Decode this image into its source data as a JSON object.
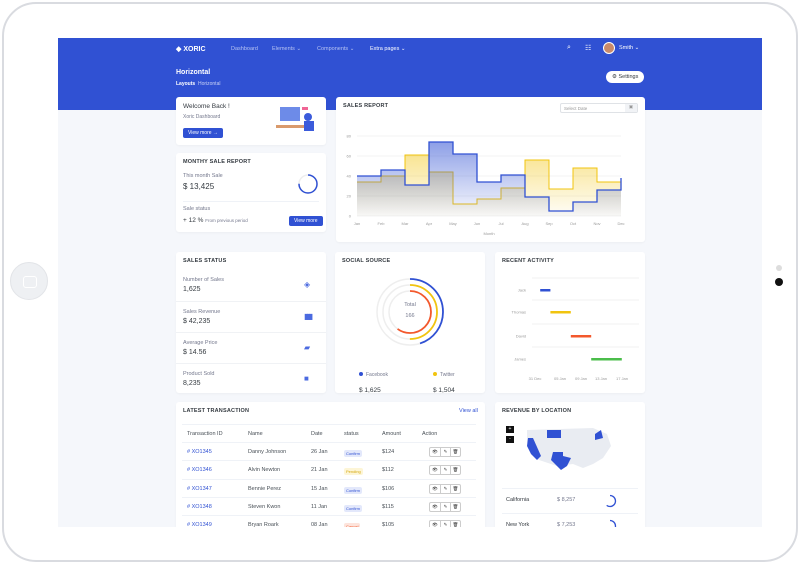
{
  "brand": "XORIC",
  "nav": [
    {
      "label": "Dashboard"
    },
    {
      "label": "Elements",
      "caret": true
    },
    {
      "label": "Components",
      "caret": true
    },
    {
      "label": "Extra pages",
      "caret": true,
      "active": true
    }
  ],
  "user": {
    "name": "Smith"
  },
  "page": {
    "title": "Horizontal",
    "breadcrumb": [
      "Layouts",
      "Horizontal"
    ],
    "settings_label": "Settings"
  },
  "welcome": {
    "title": "Welcome Back !",
    "subtitle": "Xoric Dashboard",
    "button": "View more →"
  },
  "monthly": {
    "title": "MONTHY SALE REPORT",
    "this_month_label": "This month Sale",
    "this_month_value": "$ 13,425",
    "progress": 0.75,
    "status_label": "Sale status",
    "status_value": "+ 12 %",
    "status_note": "From previous period",
    "button": "View more"
  },
  "sales_report": {
    "title": "SALES REPORT",
    "date_placeholder": "Select Date",
    "chart_data": {
      "type": "area",
      "xlabel": "Month",
      "categories": [
        "Jan",
        "Feb",
        "Mar",
        "Apr",
        "May",
        "Jun",
        "Jul",
        "Aug",
        "Sep",
        "Oct",
        "Nov",
        "Dec"
      ],
      "ylim": [
        0,
        80
      ],
      "yticks": [
        0,
        20,
        40,
        60,
        80
      ],
      "step": true,
      "series": [
        {
          "color": "#3051d3",
          "values": [
            40,
            46,
            31,
            74,
            62,
            34,
            41,
            19,
            5,
            14,
            26,
            38
          ]
        },
        {
          "color": "#f1c40f",
          "values": [
            34,
            40,
            61,
            44,
            12,
            17,
            28,
            56,
            27,
            48,
            34,
            34
          ]
        }
      ]
    }
  },
  "sales_status": {
    "title": "SALES STATUS",
    "items": [
      {
        "label": "Number of Sales",
        "value": "1,625",
        "icon": "layers-icon"
      },
      {
        "label": "Sales Revenue",
        "value": "$ 42,235",
        "icon": "bar-chart-icon"
      },
      {
        "label": "Average Price",
        "value": "$ 14.56",
        "icon": "ticket-icon"
      },
      {
        "label": "Product Sold",
        "value": "8,235",
        "icon": "box-icon"
      }
    ]
  },
  "social": {
    "title": "SOCIAL SOURCE",
    "total_label": "Total",
    "total_value": "166",
    "arcs": [
      {
        "color": "#3051d3",
        "fraction": 0.45
      },
      {
        "color": "#f1c40f",
        "fraction": 0.5
      },
      {
        "color": "#f3582c",
        "fraction": 0.6
      }
    ],
    "legend": [
      {
        "label": "Facebook",
        "value": "$ 1,625",
        "color": "#3051d3"
      },
      {
        "label": "Twitter",
        "value": "$ 1,504",
        "color": "#f1c40f"
      }
    ]
  },
  "activity": {
    "title": "RECENT ACTIVITY",
    "ticks": [
      "31 Dec",
      "05 Jan",
      "09 Jan",
      "13 Jan",
      "17 Jan"
    ],
    "chart_data": {
      "type": "bar",
      "orientation": "horizontal-range",
      "categories": [
        "Jack",
        "Thomas",
        "David",
        "James"
      ],
      "series": [
        {
          "start": "02 Jan",
          "end": "04 Jan",
          "color": "#3051d3"
        },
        {
          "start": "04 Jan",
          "end": "08 Jan",
          "color": "#f1c40f"
        },
        {
          "start": "08 Jan",
          "end": "12 Jan",
          "color": "#f3582c"
        },
        {
          "start": "12 Jan",
          "end": "18 Jan",
          "color": "#4bbd4b"
        }
      ]
    }
  },
  "transactions": {
    "title": "LATEST TRANSACTION",
    "view_all": "View all",
    "columns": [
      "Transaction ID",
      "Name",
      "Date",
      "status",
      "Amount",
      "Action"
    ],
    "rows": [
      [
        "# XO1345",
        "Danny Johnson",
        "26 Jan",
        "Confirm",
        "$124"
      ],
      [
        "# XO1346",
        "Alvin Newton",
        "21 Jan",
        "Pending",
        "$112"
      ],
      [
        "# XO1347",
        "Bennie Perez",
        "15 Jan",
        "Confirm",
        "$106"
      ],
      [
        "# XO1348",
        "Steven Kwon",
        "11 Jan",
        "Confirm",
        "$115"
      ],
      [
        "# XO1349",
        "Bryan Roark",
        "08 Jan",
        "Cancel",
        "$105"
      ]
    ]
  },
  "revenue": {
    "title": "REVENUE BY LOCATION",
    "zoom_in": "+",
    "zoom_out": "-",
    "items": [
      {
        "label": "California",
        "value": "$ 8,257",
        "progress": 0.6
      },
      {
        "label": "New York",
        "value": "$ 7,253",
        "progress": 0.45
      }
    ]
  }
}
